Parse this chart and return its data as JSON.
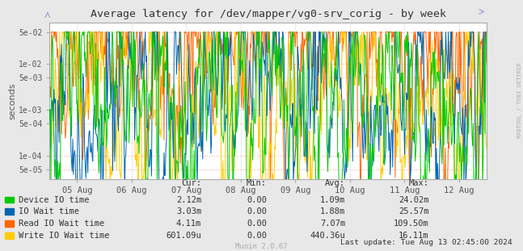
{
  "title": "Average latency for /dev/mapper/vg0-srv_corig - by week",
  "ylabel": "seconds",
  "bg_color": "#e8e8e8",
  "plot_bg_color": "#ffffff",
  "grid_color": "#cccccc",
  "border_color": "#aaaaaa",
  "yticks": [
    5e-05,
    0.0001,
    0.0005,
    0.001,
    0.005,
    0.01,
    0.05
  ],
  "ytick_labels": [
    "5e-05",
    "1e-04",
    "5e-04",
    "1e-03",
    "5e-03",
    "1e-02",
    "5e-02"
  ],
  "xticklabels": [
    "05 Aug",
    "06 Aug",
    "07 Aug",
    "08 Aug",
    "09 Aug",
    "10 Aug",
    "11 Aug",
    "12 Aug"
  ],
  "legend_items": [
    {
      "label": "Device IO time",
      "color": "#00cc00"
    },
    {
      "label": "IO Wait time",
      "color": "#0066b3"
    },
    {
      "label": "Read IO Wait time",
      "color": "#ff6600"
    },
    {
      "label": "Write IO Wait time",
      "color": "#ffcc00"
    }
  ],
  "cur_values": [
    "2.12m",
    "3.03m",
    "4.11m",
    "601.09u"
  ],
  "min_values": [
    "0.00",
    "0.00",
    "0.00",
    "0.00"
  ],
  "avg_values": [
    "1.09m",
    "1.88m",
    "7.07m",
    "440.36u"
  ],
  "max_values": [
    "24.02m",
    "25.57m",
    "109.50m",
    "16.11m"
  ],
  "last_update": "Last update: Tue Aug 13 02:45:00 2024",
  "munin_label": "Munin 2.0.67",
  "rrdtool_label": "RRDTOOL / TOBI OETIKER",
  "line_width": 0.7,
  "n_points": 700,
  "seed": 42,
  "ymin": 3e-05,
  "ymax": 0.08
}
